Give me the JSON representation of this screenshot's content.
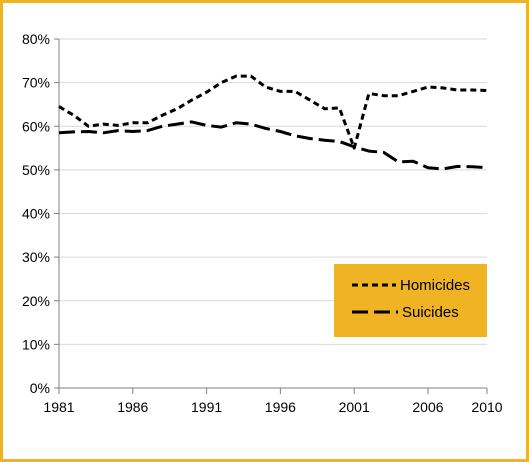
{
  "chart_data": {
    "type": "line",
    "title": "",
    "xlabel": "",
    "ylabel": "",
    "xlim": [
      1981,
      2010
    ],
    "ylim": [
      0,
      80
    ],
    "x_ticks": [
      "1981",
      "1986",
      "1991",
      "1996",
      "2001",
      "2006",
      "2010"
    ],
    "y_ticks": [
      "0%",
      "10%",
      "20%",
      "30%",
      "40%",
      "50%",
      "60%",
      "70%",
      "80%"
    ],
    "grid": "horizontal",
    "legend": {
      "position": "lower-right",
      "background": "#f0b323"
    },
    "colors": {
      "border": "#f0b323",
      "line": "#000000",
      "grid": "#d9d9d9"
    },
    "x": [
      1981,
      1982,
      1983,
      1984,
      1985,
      1986,
      1987,
      1988,
      1989,
      1990,
      1991,
      1992,
      1993,
      1994,
      1995,
      1996,
      1997,
      1998,
      1999,
      2000,
      2001,
      2002,
      2003,
      2004,
      2005,
      2006,
      2007,
      2008,
      2009,
      2010
    ],
    "series": [
      {
        "name": "Homicides",
        "dash": "short",
        "values": [
          64.5,
          62.5,
          60.0,
          60.5,
          60.2,
          60.8,
          60.8,
          62.5,
          64.0,
          66.0,
          67.8,
          70.0,
          71.5,
          71.5,
          69.0,
          68.0,
          68.0,
          66.0,
          64.0,
          64.2,
          55.0,
          67.5,
          67.0,
          67.0,
          68.0,
          69.0,
          68.8,
          68.3,
          68.3,
          68.2
        ]
      },
      {
        "name": "Suicides",
        "dash": "long",
        "values": [
          58.5,
          58.7,
          58.8,
          58.5,
          59.0,
          58.8,
          59.0,
          60.0,
          60.5,
          61.0,
          60.2,
          59.8,
          60.8,
          60.5,
          59.5,
          58.8,
          57.8,
          57.2,
          56.8,
          56.5,
          55.3,
          54.3,
          54.0,
          51.8,
          52.0,
          50.5,
          50.2,
          50.8,
          50.7,
          50.5
        ]
      }
    ]
  }
}
